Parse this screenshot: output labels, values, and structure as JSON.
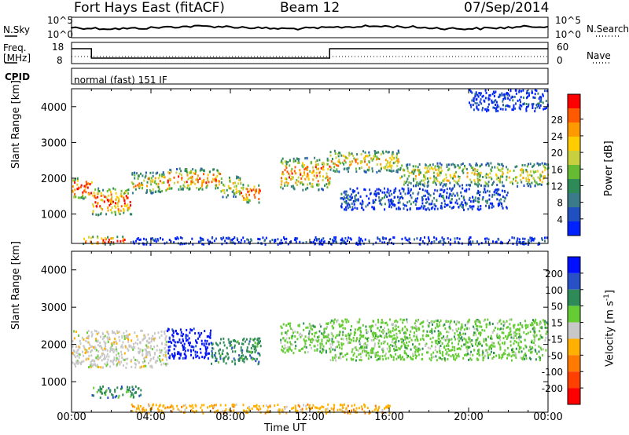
{
  "header": {
    "station": "Fort Hays East (fitACF)",
    "beam": "Beam 12",
    "date": "07/Sep/2014"
  },
  "left_labels": {
    "nsky": "N.Sky",
    "freq": "Freq.",
    "mhz": "[MHz]",
    "cpid": "CPID"
  },
  "right_labels": {
    "nsearch": "N.Search",
    "nave": "Nave"
  },
  "cpid_text": "normal (fast) 151 IF",
  "noise_axis": {
    "left_ticks": [
      "10^5",
      "10^0"
    ],
    "right_ticks": [
      "10^5",
      "10^0"
    ]
  },
  "freq_axis": {
    "left_ticks": [
      "18",
      "8"
    ],
    "right_ticks": [
      "60",
      "0"
    ]
  },
  "chart_data": [
    {
      "type": "heatmap",
      "title": "",
      "xlabel": "Time UT",
      "ylabel": "Slant Range [km]",
      "x_ticks": [
        "00:00",
        "04:00",
        "08:00",
        "12:00",
        "16:00",
        "20:00",
        "00:00"
      ],
      "y_ticks": [
        "1000",
        "2000",
        "3000",
        "4000"
      ],
      "xlim_hours": [
        0,
        24
      ],
      "ylim_km": [
        180,
        4500
      ],
      "colorbar": {
        "label": "Power [dB]",
        "ticks": [
          "4",
          "8",
          "12",
          "16",
          "20",
          "24",
          "28"
        ],
        "colors": [
          "#0022ff",
          "#2050c0",
          "#3a7a8a",
          "#2e8b57",
          "#66bb33",
          "#c8d040",
          "#ffcc00",
          "#ff9900",
          "#ff5a00",
          "#ff0000"
        ]
      },
      "scatter_bands": [
        {
          "t0": 0.0,
          "t1": 1.0,
          "r0": 1450,
          "r1": 2050,
          "level": 0.85
        },
        {
          "t0": 1.0,
          "t1": 3.0,
          "r0": 1000,
          "r1": 1750,
          "level": 0.8
        },
        {
          "t0": 3.0,
          "t1": 4.8,
          "r0": 1600,
          "r1": 2200,
          "level": 0.6
        },
        {
          "t0": 4.8,
          "t1": 7.5,
          "r0": 1700,
          "r1": 2300,
          "level": 0.75
        },
        {
          "t0": 7.5,
          "t1": 8.5,
          "r0": 1500,
          "r1": 2100,
          "level": 0.55
        },
        {
          "t0": 8.5,
          "t1": 9.5,
          "r0": 1350,
          "r1": 1850,
          "level": 0.85
        },
        {
          "t0": 10.5,
          "t1": 13.0,
          "r0": 1700,
          "r1": 2600,
          "level": 0.7
        },
        {
          "t0": 13.0,
          "t1": 16.5,
          "r0": 2200,
          "r1": 2800,
          "level": 0.6
        },
        {
          "t0": 16.5,
          "t1": 24.0,
          "r0": 1800,
          "r1": 2450,
          "level": 0.55
        },
        {
          "t0": 13.5,
          "t1": 22.0,
          "r0": 1150,
          "r1": 1750,
          "level": 0.15
        },
        {
          "t0": 0.5,
          "t1": 2.8,
          "r0": 180,
          "r1": 400,
          "level": 0.9
        },
        {
          "t0": 3.0,
          "t1": 24.0,
          "r0": 180,
          "r1": 380,
          "level": 0.05
        },
        {
          "t0": 20.0,
          "t1": 24.0,
          "r0": 3900,
          "r1": 4500,
          "level": 0.1
        }
      ]
    },
    {
      "type": "heatmap",
      "title": "",
      "xlabel": "Time UT",
      "ylabel": "Slant Range [km]",
      "x_ticks": [
        "00:00",
        "04:00",
        "08:00",
        "12:00",
        "16:00",
        "20:00",
        "00:00"
      ],
      "y_ticks": [
        "1000",
        "2000",
        "3000",
        "4000"
      ],
      "xlim_hours": [
        0,
        24
      ],
      "ylim_km": [
        180,
        4500
      ],
      "colorbar": {
        "label": "Velocity [m s^-1]",
        "ticks": [
          "200",
          "100",
          "50",
          "15",
          "-15",
          "-50",
          "-100",
          "-200"
        ],
        "colors": [
          "#0010ff",
          "#2a50c8",
          "#2e8b57",
          "#66cc33",
          "#c8c8c8",
          "#ffb000",
          "#ff7a00",
          "#ff4000",
          "#ff0000"
        ]
      },
      "scatter_bands": [
        {
          "t0": 0.0,
          "t1": 4.8,
          "r0": 1400,
          "r1": 2400,
          "level": "-15"
        },
        {
          "t0": 4.8,
          "t1": 7.0,
          "r0": 1650,
          "r1": 2450,
          "level": "200"
        },
        {
          "t0": 7.0,
          "t1": 9.5,
          "r0": 1500,
          "r1": 2200,
          "level": "50"
        },
        {
          "t0": 10.5,
          "t1": 13.0,
          "r0": 1800,
          "r1": 2600,
          "level": "15"
        },
        {
          "t0": 13.0,
          "t1": 24.0,
          "r0": 1600,
          "r1": 2700,
          "level": "15"
        },
        {
          "t0": 3.0,
          "t1": 16.0,
          "r0": 180,
          "r1": 420,
          "level": "-50"
        },
        {
          "t0": 1.0,
          "t1": 3.5,
          "r0": 600,
          "r1": 900,
          "level": "50"
        }
      ]
    }
  ]
}
